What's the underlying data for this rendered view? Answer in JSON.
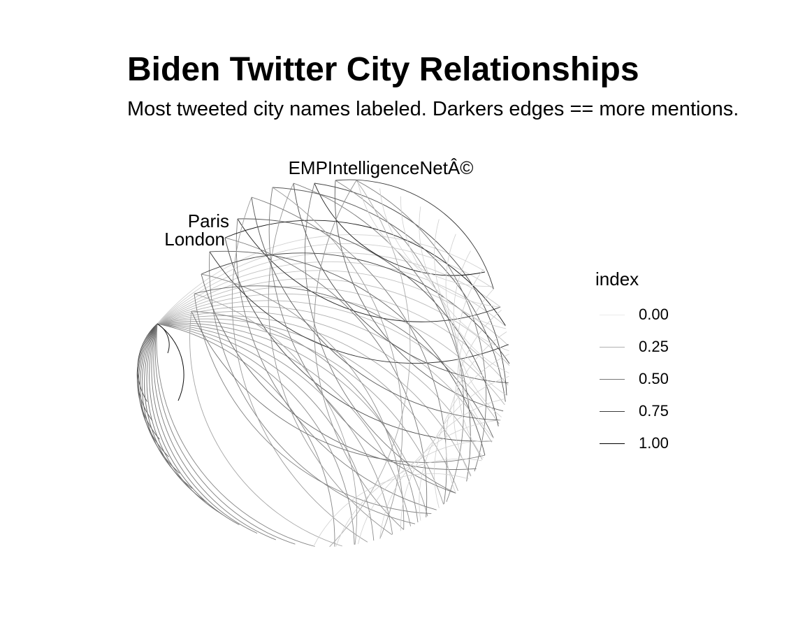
{
  "title": "Biden Twitter City Relationships",
  "subtitle": "Most tweeted city names labeled. Darkers edges == more mentions.",
  "node_labels": [
    "EMPIntelligenceNetÂ©",
    "Paris",
    "London"
  ],
  "legend": {
    "title": "index",
    "entries": [
      {
        "label": "0.00",
        "value": 0.0
      },
      {
        "label": "0.25",
        "value": 0.25
      },
      {
        "label": "0.50",
        "value": 0.5
      },
      {
        "label": "0.75",
        "value": 0.75
      },
      {
        "label": "1.00",
        "value": 1.0
      }
    ]
  },
  "chart_data": {
    "type": "network",
    "layout": "circular arc diagram",
    "edge_color_scale": "index (light gray = 0.00, black = 1.00)",
    "labeled_nodes": [
      "EMPIntelligenceNetÂ©",
      "Paris",
      "London"
    ]
  }
}
